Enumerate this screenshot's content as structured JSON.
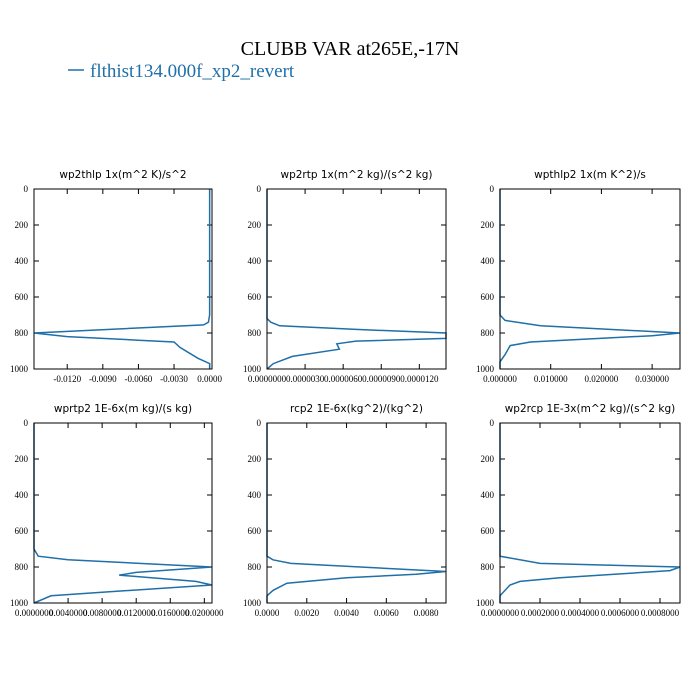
{
  "title": "CLUBB VAR at265E,-17N",
  "legend": {
    "name": "flthist134.000f_xp2_revert",
    "color": "#1f6fa8"
  },
  "chart_data": [
    {
      "type": "line",
      "title": "wp2thlp  1x(m^2 K)/s^2",
      "color": "#1f6fa8",
      "xlim": [
        -0.0148,
        0.0002
      ],
      "xticks": [
        {
          "value": -0.012,
          "label": "-0.0120"
        },
        {
          "value": -0.009,
          "label": "-0.0090"
        },
        {
          "value": -0.006,
          "label": "-0.0060"
        },
        {
          "value": -0.003,
          "label": "-0.0030"
        },
        {
          "value": 0,
          "label": "0.0000"
        }
      ],
      "ylim": [
        1000,
        0
      ],
      "yticks": [
        0,
        200,
        400,
        600,
        800,
        1000
      ],
      "y": [
        0,
        700,
        740,
        755,
        800,
        820,
        840,
        850,
        880,
        940,
        970,
        1000
      ],
      "values": [
        0,
        0,
        -0.0001,
        -0.0005,
        -0.0148,
        -0.012,
        -0.006,
        -0.003,
        -0.0025,
        -0.001,
        0,
        0
      ]
    },
    {
      "type": "line",
      "title": "wp2rtp  1x(m^2 kg)/(s^2 kg)",
      "color": "#1f6fa8",
      "xlim": [
        0,
        1.41e-05
      ],
      "xticks": [
        {
          "value": 0,
          "label": "0.0000000"
        },
        {
          "value": 3e-06,
          "label": "0.0000030"
        },
        {
          "value": 6e-06,
          "label": "0.0000060"
        },
        {
          "value": 9e-06,
          "label": "0.0000090"
        },
        {
          "value": 1.2e-05,
          "label": "0.0000120"
        }
      ],
      "ylim": [
        1000,
        0
      ],
      "yticks": [
        0,
        200,
        400,
        600,
        800,
        1000
      ],
      "y": [
        0,
        720,
        740,
        760,
        780,
        800,
        830,
        845,
        860,
        890,
        930,
        970,
        1000
      ],
      "values": [
        0,
        0,
        3e-07,
        1e-06,
        7e-06,
        1.41e-05,
        1.41e-05,
        7e-06,
        5.5e-06,
        5.7e-06,
        2e-06,
        5e-07,
        0
      ]
    },
    {
      "type": "line",
      "title": "wpthlp2  1x(m K^2)/s",
      "color": "#1f6fa8",
      "xlim": [
        0,
        0.0355
      ],
      "xticks": [
        {
          "value": 0,
          "label": "0.000000"
        },
        {
          "value": 0.01,
          "label": "0.010000"
        },
        {
          "value": 0.02,
          "label": "0.020000"
        },
        {
          "value": 0.03,
          "label": "0.030000"
        }
      ],
      "ylim": [
        1000,
        0
      ],
      "yticks": [
        0,
        200,
        400,
        600,
        800,
        1000
      ],
      "y": [
        0,
        700,
        730,
        760,
        800,
        815,
        850,
        870,
        920,
        960,
        1000
      ],
      "values": [
        0,
        0,
        0.001,
        0.008,
        0.0355,
        0.03,
        0.006,
        0.002,
        0.001,
        0,
        0
      ]
    },
    {
      "type": "line",
      "title": "wprtp2  1E-6x(m kg)/(s kg)",
      "color": "#1f6fa8",
      "xlim": [
        0,
        0.0209
      ],
      "xticks": [
        {
          "value": 0,
          "label": "0.0000000"
        },
        {
          "value": 0.004,
          "label": "0.0040000"
        },
        {
          "value": 0.008,
          "label": "0.0080000"
        },
        {
          "value": 0.012,
          "label": "0.0120000"
        },
        {
          "value": 0.016,
          "label": "0.0160000"
        },
        {
          "value": 0.02,
          "label": "0.0200000"
        }
      ],
      "ylim": [
        1000,
        0
      ],
      "yticks": [
        0,
        200,
        400,
        600,
        800,
        1000
      ],
      "y": [
        0,
        700,
        740,
        760,
        800,
        830,
        845,
        880,
        900,
        940,
        960,
        1000
      ],
      "values": [
        0,
        0,
        0.0005,
        0.004,
        0.0209,
        0.012,
        0.01,
        0.019,
        0.0209,
        0.008,
        0.002,
        0
      ]
    },
    {
      "type": "line",
      "title": "rcp2  1E-6x(kg^2)/(kg^2)",
      "color": "#1f6fa8",
      "xlim": [
        0,
        0.009
      ],
      "xticks": [
        {
          "value": 0,
          "label": "0.0000"
        },
        {
          "value": 0.002,
          "label": "0.0020"
        },
        {
          "value": 0.004,
          "label": "0.0040"
        },
        {
          "value": 0.006,
          "label": "0.0060"
        },
        {
          "value": 0.008,
          "label": "0.0080"
        }
      ],
      "ylim": [
        1000,
        0
      ],
      "yticks": [
        0,
        200,
        400,
        600,
        800,
        1000
      ],
      "y": [
        0,
        740,
        760,
        780,
        825,
        840,
        860,
        890,
        930,
        960,
        1000
      ],
      "values": [
        0,
        0,
        0.0003,
        0.0012,
        0.009,
        0.0075,
        0.004,
        0.001,
        0.0003,
        0,
        0
      ]
    },
    {
      "type": "line",
      "title": "wp2rcp  1E-3x(m^2 kg)/(s^2 kg)",
      "color": "#1f6fa8",
      "xlim": [
        0,
        0.0009
      ],
      "xticks": [
        {
          "value": 0,
          "label": "0.0000000"
        },
        {
          "value": 0.0002,
          "label": "0.0002000"
        },
        {
          "value": 0.0004,
          "label": "0.0004000"
        },
        {
          "value": 0.0006,
          "label": "0.0006000"
        },
        {
          "value": 0.0008,
          "label": "0.0008000"
        }
      ],
      "ylim": [
        1000,
        0
      ],
      "yticks": [
        0,
        200,
        400,
        600,
        800,
        1000
      ],
      "y": [
        0,
        740,
        780,
        800,
        820,
        860,
        880,
        900,
        960,
        1000
      ],
      "values": [
        0,
        0,
        0.0002,
        0.0009,
        0.00085,
        0.0003,
        0.0001,
        5e-05,
        0,
        0
      ]
    }
  ]
}
